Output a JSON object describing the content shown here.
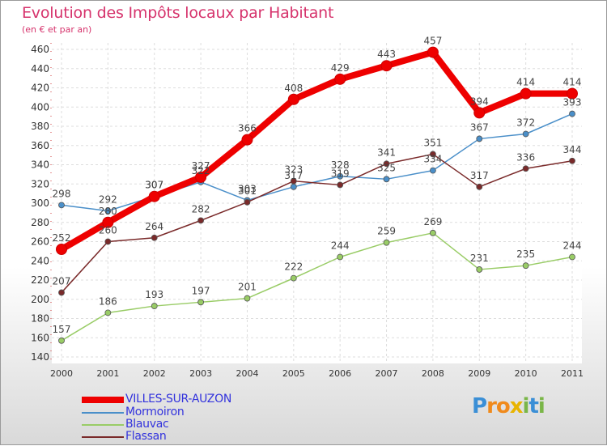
{
  "chart_data": {
    "type": "line",
    "title": "Evolution des Impôts locaux par Habitant",
    "subtitle": "(en € et par an)",
    "xlabel": "",
    "ylabel": "",
    "ylim": [
      140,
      460
    ],
    "yticks": [
      140,
      160,
      180,
      200,
      220,
      240,
      260,
      280,
      300,
      320,
      340,
      360,
      380,
      400,
      420,
      440,
      460
    ],
    "categories": [
      "2000",
      "2001",
      "2002",
      "2003",
      "2004",
      "2005",
      "2006",
      "2007",
      "2008",
      "2009",
      "2010",
      "2011"
    ],
    "series": [
      {
        "name": "VILLES-SUR-AUZON",
        "color": "#ee0000",
        "values": [
          252,
          280,
          307,
          327,
          366,
          408,
          429,
          443,
          457,
          394,
          414,
          414
        ]
      },
      {
        "name": "Mormoiron",
        "color": "#4a8fc9",
        "values": [
          298,
          292,
          307,
          322,
          303,
          317,
          328,
          325,
          334,
          367,
          372,
          393
        ]
      },
      {
        "name": "Blauvac",
        "color": "#99cc66",
        "values": [
          157,
          186,
          193,
          197,
          201,
          222,
          244,
          259,
          269,
          231,
          235,
          244
        ]
      },
      {
        "name": "Flassan",
        "color": "#7a2a2a",
        "values": [
          207,
          260,
          264,
          282,
          301,
          323,
          319,
          341,
          351,
          317,
          336,
          344
        ]
      }
    ],
    "grid": true
  },
  "logo": {
    "letters": [
      "P",
      "r",
      "o",
      "x",
      "i",
      "t",
      "i"
    ],
    "colors": [
      "#3b8fd6",
      "#f08a1c",
      "#f08a1c",
      "#e8b400",
      "#7ab648",
      "#3b8fd6",
      "#7ab648"
    ]
  }
}
